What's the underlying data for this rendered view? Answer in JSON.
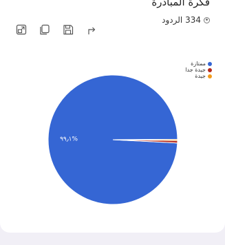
{
  "header": {
    "title": "فكرة المبادرة",
    "responses_label": "334 الردود"
  },
  "toolbar": {
    "icons": [
      "open-external-icon",
      "copy-icon",
      "save-icon",
      "share-icon"
    ]
  },
  "colors": {
    "primary": "#3566d4",
    "secondary": "#b52a1d",
    "tertiary": "#f29a1b"
  },
  "chart_data": {
    "type": "pie",
    "categories": [
      "ممتازة",
      "جيدة جدا",
      "جيدة"
    ],
    "values": [
      99.1,
      0.6,
      0.3
    ],
    "colors": [
      "#3566d4",
      "#b52a1d",
      "#f29a1b"
    ],
    "data_labels": [
      "٩٩٫١%",
      "",
      ""
    ],
    "legend_position": "top-right"
  }
}
